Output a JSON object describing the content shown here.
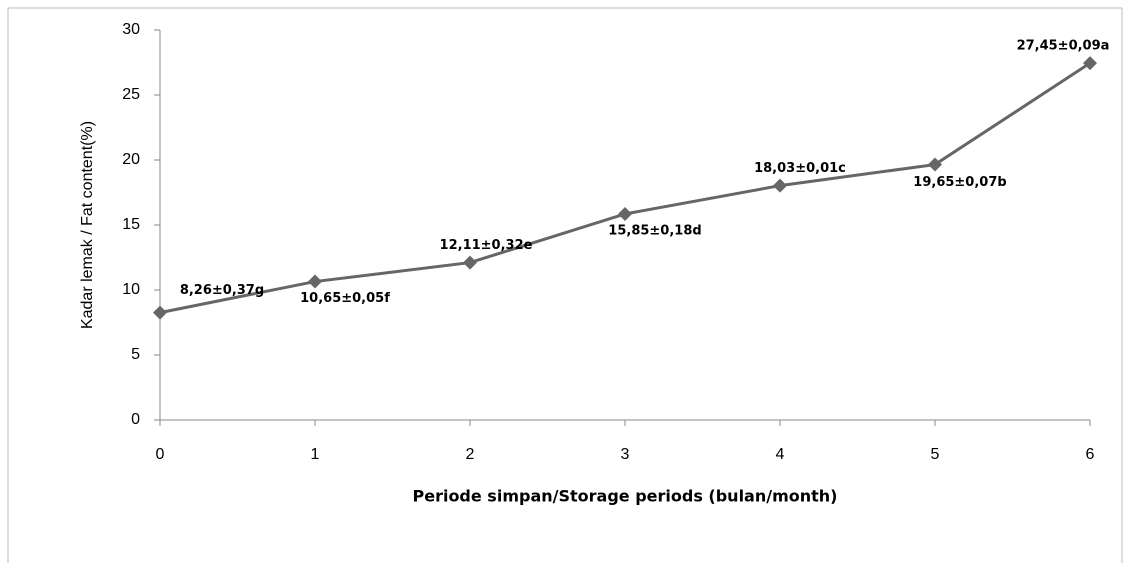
{
  "chart_data": {
    "type": "line",
    "x_label": "Periode simpan/Storage periods (bulan/month)",
    "y_label": "Kadar lemak / Fat content(%)",
    "x": [
      0,
      1,
      2,
      3,
      4,
      5,
      6
    ],
    "values": [
      8.26,
      10.65,
      12.11,
      15.85,
      18.03,
      19.65,
      27.45
    ],
    "value_labels": [
      "8,26±0,37g",
      "10,65±0,05f",
      "12,11±0,32e",
      "15,85±0,18d",
      "18,03±0,01c",
      "19,65±0,07b",
      "27,45±0,09a"
    ],
    "color": "#666666",
    "xlim": [
      0,
      6
    ],
    "xticks": [
      0,
      1,
      2,
      3,
      4,
      5,
      6
    ],
    "ylim": [
      0,
      30
    ],
    "yticks": [
      0,
      5,
      10,
      15,
      20,
      25,
      30
    ],
    "grid": false
  }
}
